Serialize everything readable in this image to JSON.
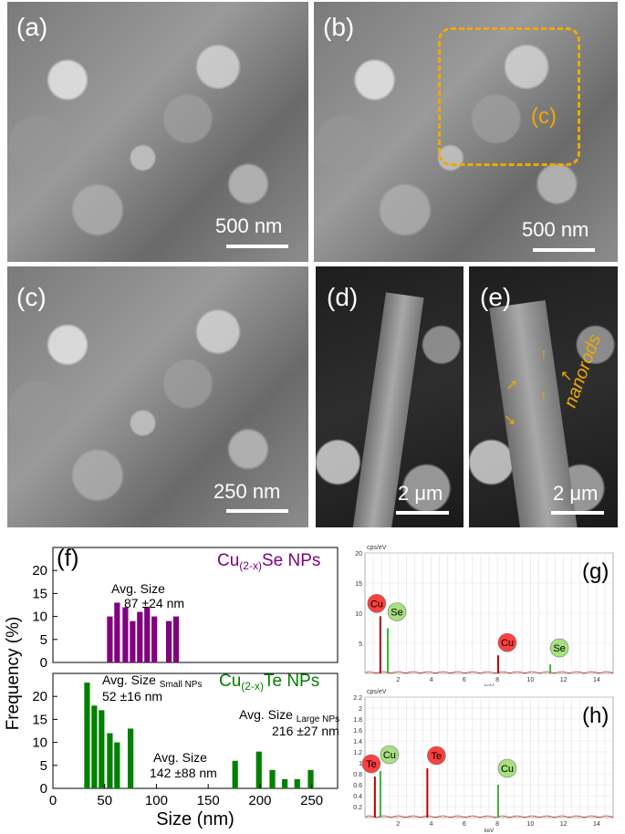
{
  "panels": {
    "a": {
      "label": "(a)",
      "scale": "500 nm"
    },
    "b": {
      "label": "(b)",
      "scale": "500 nm",
      "inset_label": "(c)"
    },
    "c": {
      "label": "(c)",
      "scale": "250 nm"
    },
    "d": {
      "label": "(d)",
      "scale": "2 μm"
    },
    "e": {
      "label": "(e)",
      "scale": "2 μm",
      "annotation": "nanorods"
    }
  },
  "colors": {
    "se": "#800080",
    "te": "#008000",
    "highlight": "#f0a800",
    "eds_red": "#c00000",
    "eds_green": "#3cb43c"
  },
  "chart_data": [
    {
      "type": "bar",
      "panel": "(f)",
      "ylabel": "Frequency (%)",
      "xlabel": "Size (nm)",
      "xlim": [
        0,
        275
      ],
      "xticks": [
        0,
        50,
        100,
        150,
        200,
        250
      ],
      "subplots": [
        {
          "name": "Cu(2-x)Se NPs",
          "title_main": "Cu",
          "title_sub": "(2-x)",
          "title_tail": "Se NPs",
          "ylim": [
            0,
            25
          ],
          "yticks": [
            0,
            5,
            10,
            15,
            20
          ],
          "x": [
            55,
            62,
            70,
            77,
            84,
            91,
            98,
            105,
            112,
            119,
            126
          ],
          "values": [
            10,
            13,
            12,
            9,
            11,
            12,
            10,
            0,
            9,
            10,
            0
          ],
          "annotations": [
            {
              "line1": "Avg. Size",
              "line2": "87 ±24 nm"
            }
          ]
        },
        {
          "name": "Cu(2-x)Te NPs",
          "title_main": "Cu",
          "title_sub": "(2-x)",
          "title_tail": "Te NPs",
          "ylim": [
            0,
            25
          ],
          "yticks": [
            0,
            5,
            10,
            15,
            20
          ],
          "x": [
            33,
            40,
            47,
            55,
            62,
            75,
            176,
            199,
            212,
            224,
            236,
            249
          ],
          "values": [
            23,
            18,
            17,
            12,
            10,
            13,
            6,
            8,
            4,
            2,
            2,
            4
          ],
          "annotations": [
            {
              "line1": "Avg. Size",
              "sub": "Small NPs",
              "line2": "52 ±16 nm"
            },
            {
              "line1": "Avg. Size",
              "sub": "Large NPs",
              "line2": "216 ±27 nm"
            },
            {
              "line1": "Avg. Size",
              "line2": "142 ±88 nm"
            }
          ]
        }
      ]
    },
    {
      "type": "line",
      "panel": "(g)",
      "ylabel": "cps/eV",
      "xlabel": "keV",
      "xlim": [
        0,
        15
      ],
      "ylim": [
        0,
        20
      ],
      "xticks": [
        2,
        4,
        6,
        8,
        10,
        12,
        14
      ],
      "yticks": [
        5,
        10,
        15,
        20
      ],
      "peaks": [
        {
          "element": "Cu",
          "x": 0.93,
          "y": 9.5,
          "tag": "red"
        },
        {
          "element": "Se",
          "x": 1.38,
          "y": 7.5,
          "tag": "green"
        },
        {
          "element": "Cu",
          "x": 8.05,
          "y": 3.0,
          "tag": "red"
        },
        {
          "element": "Se",
          "x": 11.2,
          "y": 1.5,
          "tag": "green"
        }
      ]
    },
    {
      "type": "line",
      "panel": "(h)",
      "ylabel": "cps/eV",
      "xlabel": "keV",
      "xlim": [
        0,
        15
      ],
      "ylim": [
        0,
        2.2
      ],
      "xticks": [
        2,
        4,
        6,
        8,
        10,
        12,
        14
      ],
      "yticks": [
        0.2,
        0.4,
        0.6,
        0.8,
        1.0,
        1.2,
        1.4,
        1.6,
        1.8,
        2.0,
        2.2
      ],
      "peaks": [
        {
          "element": "Te",
          "x": 0.6,
          "y": 0.75,
          "tag": "red"
        },
        {
          "element": "Cu",
          "x": 0.93,
          "y": 0.85,
          "tag": "green"
        },
        {
          "element": "Te",
          "x": 3.77,
          "y": 0.9,
          "tag": "red"
        },
        {
          "element": "Cu",
          "x": 8.05,
          "y": 0.6,
          "tag": "green"
        }
      ]
    }
  ]
}
